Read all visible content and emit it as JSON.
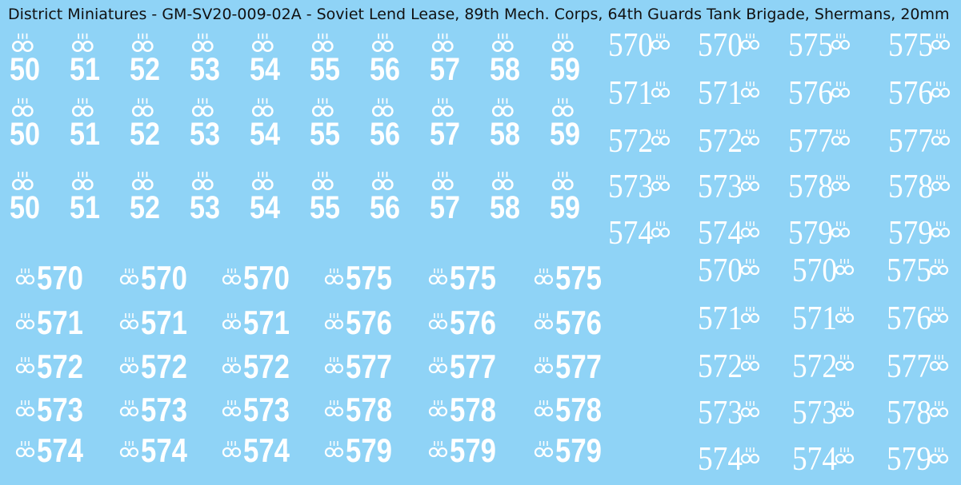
{
  "header": {
    "title": "District Miniatures - GM-SV20-009-02A - Soviet Lend Lease, 89th Mech. Corps, 64th Guards Tank Brigade, Shermans, 20mm"
  },
  "blocks": [
    {
      "columns": [
        [
          "50",
          "50",
          "50"
        ],
        [
          "51",
          "51",
          "51"
        ],
        [
          "52",
          "52",
          "52"
        ],
        [
          "53",
          "53",
          "53"
        ],
        [
          "54",
          "54",
          "54"
        ],
        [
          "55",
          "55",
          "55"
        ],
        [
          "56",
          "56",
          "56"
        ],
        [
          "57",
          "57",
          "57"
        ],
        [
          "58",
          "58",
          "58"
        ],
        [
          "59",
          "59",
          "59"
        ]
      ]
    },
    {
      "columns": [
        [
          "570",
          "571",
          "572",
          "573",
          "574"
        ],
        [
          "570",
          "571",
          "572",
          "573",
          "574"
        ],
        [
          "575",
          "576",
          "577",
          "578",
          "579"
        ],
        [
          "575",
          "576",
          "577",
          "578",
          "579"
        ]
      ]
    },
    {
      "columns": [
        [
          "570",
          "571",
          "572",
          "573",
          "574"
        ],
        [
          "570",
          "571",
          "572",
          "573",
          "574"
        ],
        [
          "570",
          "571",
          "572",
          "573",
          "574"
        ],
        [
          "575",
          "576",
          "577",
          "578",
          "579"
        ],
        [
          "575",
          "576",
          "577",
          "578",
          "579"
        ],
        [
          "575",
          "576",
          "577",
          "578",
          "579"
        ]
      ]
    },
    {
      "columns": [
        [
          "570",
          "571",
          "572",
          "573",
          "574"
        ],
        [
          "570",
          "571",
          "572",
          "573",
          "574"
        ],
        [
          "575",
          "576",
          "577",
          "578",
          "579"
        ]
      ]
    }
  ]
}
